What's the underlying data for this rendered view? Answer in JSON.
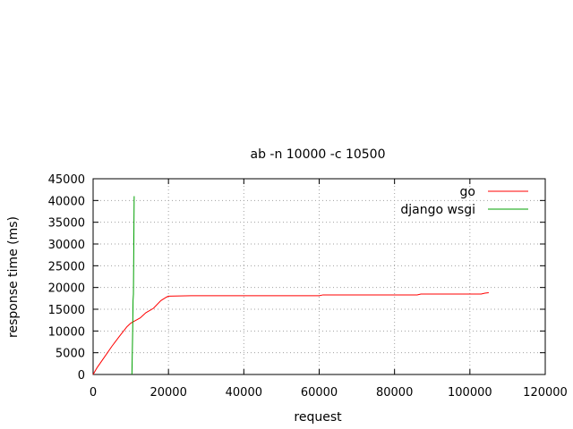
{
  "chart_data": {
    "type": "line",
    "title": "ab -n 10000 -c 10500",
    "xlabel": "request",
    "ylabel": "response time (ms)",
    "xlim": [
      0,
      120000
    ],
    "ylim": [
      0,
      45000
    ],
    "xticks": [
      0,
      20000,
      40000,
      60000,
      80000,
      100000,
      120000
    ],
    "yticks": [
      0,
      5000,
      10000,
      15000,
      20000,
      25000,
      30000,
      35000,
      40000,
      45000
    ],
    "grid": true,
    "grid_style": "dotted",
    "legend_position": "top-right",
    "series": [
      {
        "name": "go",
        "color": "#ff0000",
        "points": [
          [
            0,
            0
          ],
          [
            1000,
            1500
          ],
          [
            3000,
            4000
          ],
          [
            5000,
            6500
          ],
          [
            7000,
            8800
          ],
          [
            9000,
            11000
          ],
          [
            10000,
            11800
          ],
          [
            11000,
            12300
          ],
          [
            12500,
            13000
          ],
          [
            14000,
            14200
          ],
          [
            16000,
            15200
          ],
          [
            18000,
            17000
          ],
          [
            19500,
            17800
          ],
          [
            20000,
            18000
          ],
          [
            26000,
            18100
          ],
          [
            60000,
            18100
          ],
          [
            61000,
            18300
          ],
          [
            86000,
            18300
          ],
          [
            87000,
            18500
          ],
          [
            103000,
            18500
          ],
          [
            104000,
            18700
          ],
          [
            105000,
            18800
          ]
        ]
      },
      {
        "name": "django wsgi",
        "color": "#00a000",
        "points": [
          [
            10300,
            0
          ],
          [
            10400,
            5000
          ],
          [
            10500,
            10000
          ],
          [
            10600,
            17000
          ],
          [
            10700,
            18500
          ],
          [
            10800,
            30000
          ],
          [
            10900,
            41000
          ]
        ]
      }
    ]
  }
}
